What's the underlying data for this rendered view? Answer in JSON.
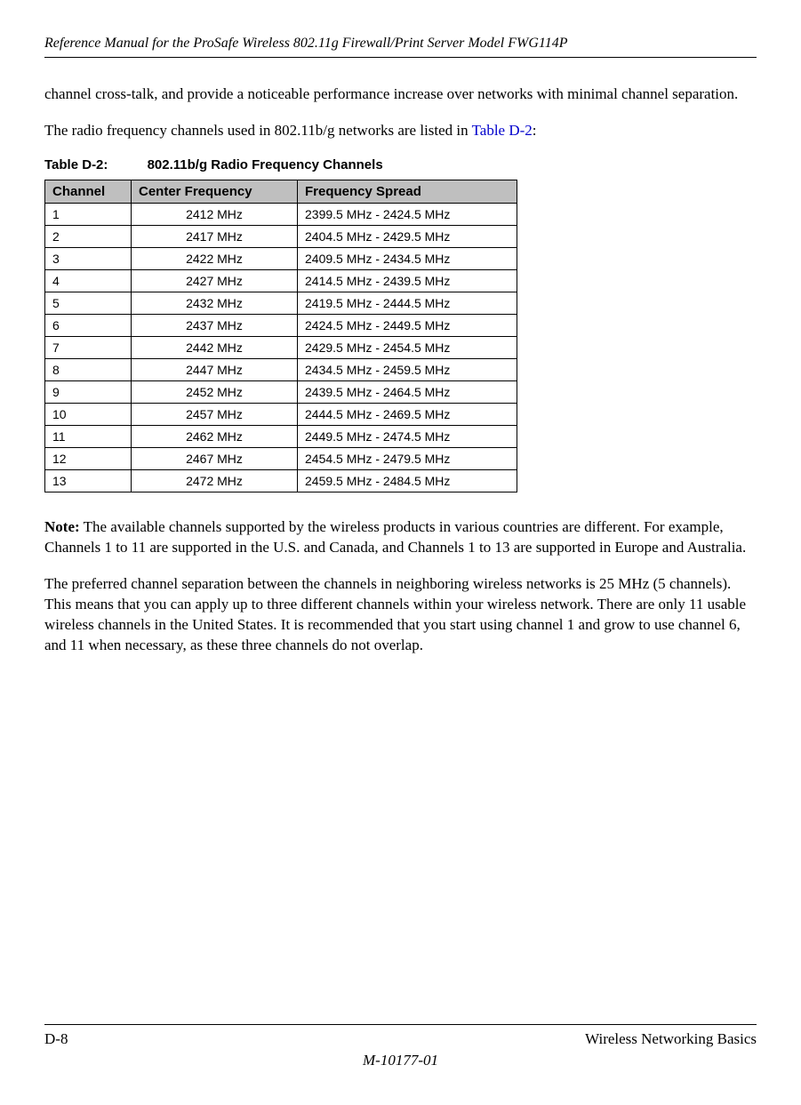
{
  "header": {
    "title": "Reference Manual for the ProSafe Wireless 802.11g  Firewall/Print Server Model FWG114P"
  },
  "intro": {
    "para1": "channel cross-talk, and provide a noticeable performance increase over networks with minimal channel separation.",
    "para2_pre": "The radio frequency channels used in 802.11b/g networks are listed in ",
    "para2_link": "Table D-2",
    "para2_post": ":"
  },
  "table": {
    "caption_num": "Table D-2:",
    "caption_title": "802.11b/g Radio Frequency Channels",
    "columns": [
      "Channel",
      "Center Frequency",
      "Frequency Spread"
    ],
    "rows": [
      [
        "1",
        "2412 MHz",
        "2399.5 MHz - 2424.5 MHz"
      ],
      [
        "2",
        "2417 MHz",
        "2404.5 MHz - 2429.5 MHz"
      ],
      [
        "3",
        "2422 MHz",
        "2409.5 MHz - 2434.5 MHz"
      ],
      [
        "4",
        "2427 MHz",
        "2414.5 MHz - 2439.5 MHz"
      ],
      [
        "5",
        "2432 MHz",
        "2419.5 MHz - 2444.5 MHz"
      ],
      [
        "6",
        "2437 MHz",
        "2424.5 MHz - 2449.5 MHz"
      ],
      [
        "7",
        "2442 MHz",
        "2429.5 MHz - 2454.5 MHz"
      ],
      [
        "8",
        "2447 MHz",
        "2434.5 MHz - 2459.5 MHz"
      ],
      [
        "9",
        "2452 MHz",
        "2439.5 MHz - 2464.5 MHz"
      ],
      [
        "10",
        "2457 MHz",
        "2444.5 MHz - 2469.5 MHz"
      ],
      [
        "11",
        "2462 MHz",
        "2449.5 MHz - 2474.5 MHz"
      ],
      [
        "12",
        "2467 MHz",
        "2454.5 MHz - 2479.5 MHz"
      ],
      [
        "13",
        "2472 MHz",
        "2459.5 MHz - 2484.5 MHz"
      ]
    ],
    "header_bg": "#bfbfbf",
    "border_color": "#000000"
  },
  "note": {
    "label": "Note:",
    "text": " The available channels supported by the wireless products in various countries are different. For example, Channels 1 to 11 are supported in the U.S. and Canada, and Channels 1 to 13 are supported in Europe and Australia."
  },
  "para3": "The preferred channel separation between the channels in neighboring wireless networks is 25 MHz (5 channels). This means that you can apply up to three different channels within your wireless network. There are only 11 usable wireless channels in the United States. It is recommended that you start using channel 1 and grow to use channel 6, and 11 when necessary, as these three channels do not overlap.",
  "footer": {
    "page": "D-8",
    "section": "Wireless Networking Basics",
    "docnum": "M-10177-01"
  }
}
